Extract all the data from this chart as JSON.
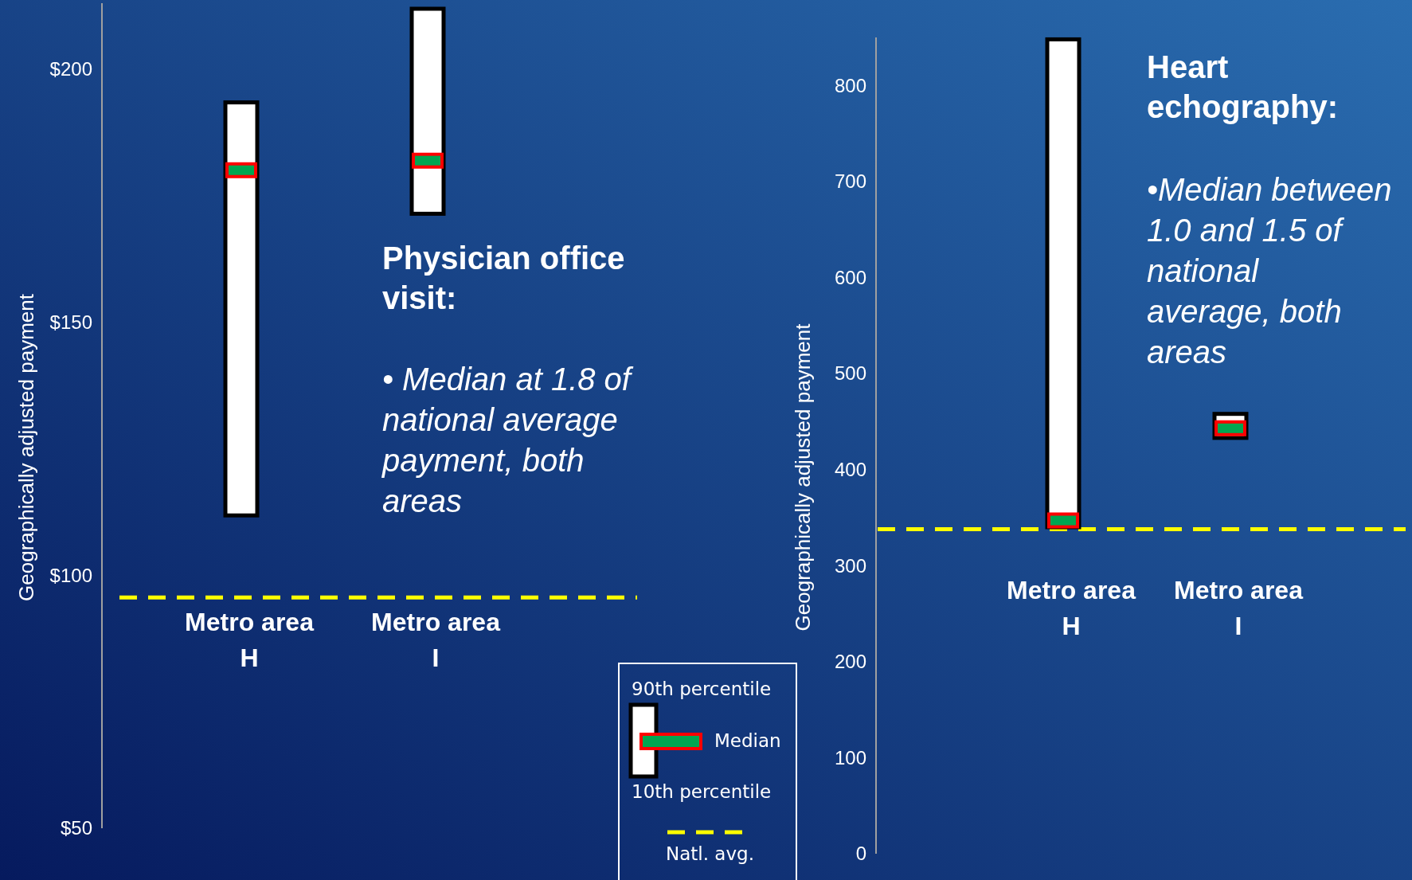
{
  "chart_data": [
    {
      "type": "box",
      "title": "Physician office visit:",
      "ylabel": "Geographically adjusted payment",
      "categories": [
        "Metro area H",
        "Metro area I"
      ],
      "legend": "bottom right",
      "series": [
        {
          "color": "#ffffff",
          "boxes": [
            {
              "low": 111.8,
              "q1": 111.8,
              "median": 180,
              "q3": 193.4,
              "high": 193.4
            },
            {
              "low": 171.4,
              "q1": 171.4,
              "median": 181.9,
              "q3": 211.9,
              "high": 211.9
            }
          ]
        }
      ],
      "ylim": [
        50,
        213
      ],
      "yticks": [
        {
          "value": 50,
          "label": "$50"
        },
        {
          "value": 100,
          "label": "$100"
        },
        {
          "value": 150,
          "label": "$150"
        },
        {
          "value": 200,
          "label": "$200"
        }
      ],
      "ref_lines": [
        {
          "axis": "y",
          "value": 95.6,
          "label": "Natl. avg.",
          "color": "#ffff00",
          "line_style": "dashed"
        }
      ],
      "annotations": [
        "• Median at 1.8 of national average payment, both areas",
        "90th percentile",
        "Median",
        "10th percentile"
      ]
    },
    {
      "type": "box",
      "title": "Heart echography:",
      "ylabel": "Geographically adjusted payment",
      "categories": [
        "Metro area H",
        "Metro area I"
      ],
      "series": [
        {
          "color": "#ffffff",
          "boxes": [
            {
              "low": 340,
              "q1": 340,
              "median": 347,
              "q3": 848,
              "high": 848
            },
            {
              "low": 433,
              "q1": 433,
              "median": 443,
              "q3": 458,
              "high": 458
            }
          ]
        }
      ],
      "ylim": [
        0,
        850
      ],
      "yticks": [
        0,
        100,
        200,
        300,
        400,
        500,
        600,
        700,
        800
      ],
      "ref_lines": [
        {
          "axis": "y",
          "value": 338,
          "color": "#ffff00",
          "line_style": "dashed"
        }
      ],
      "annotations": [
        "•Median between 1.0 and 1.5  of national average, both areas"
      ]
    }
  ]
}
